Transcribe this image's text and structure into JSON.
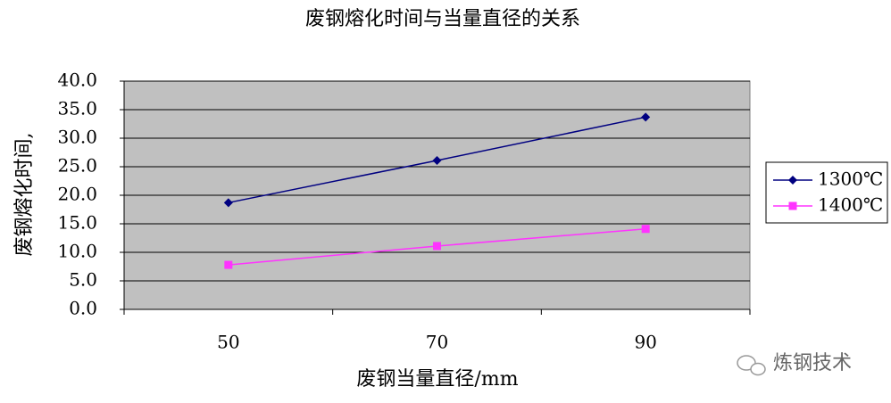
{
  "chart_data": {
    "type": "line",
    "title": "废钢熔化时间与当量直径的关系",
    "x_label": "废钢当量直径/mm",
    "y_label": "废钢熔化时间,",
    "categories": [
      "50",
      "70",
      "90"
    ],
    "series": [
      {
        "name": "1300℃",
        "color": "#000080",
        "marker": "diamond",
        "values": [
          18.7,
          26.1,
          33.7
        ]
      },
      {
        "name": "1400℃",
        "color": "#ff33ff",
        "marker": "square",
        "values": [
          7.8,
          11.1,
          14.1
        ]
      }
    ],
    "ylim": [
      0,
      40
    ],
    "yticks": [
      {
        "value": 0,
        "label": "0.0"
      },
      {
        "value": 5,
        "label": "5.0"
      },
      {
        "value": 10,
        "label": "10.0"
      },
      {
        "value": 15,
        "label": "15.0"
      },
      {
        "value": 20,
        "label": "20.0"
      },
      {
        "value": 25,
        "label": "25.0"
      },
      {
        "value": 30,
        "label": "30.0"
      },
      {
        "value": 35,
        "label": "35.0"
      },
      {
        "value": 40,
        "label": "40.0"
      }
    ],
    "grid": true,
    "legend": "right",
    "plot_background": "#c0c0c0",
    "watermark": "炼钢技术"
  }
}
